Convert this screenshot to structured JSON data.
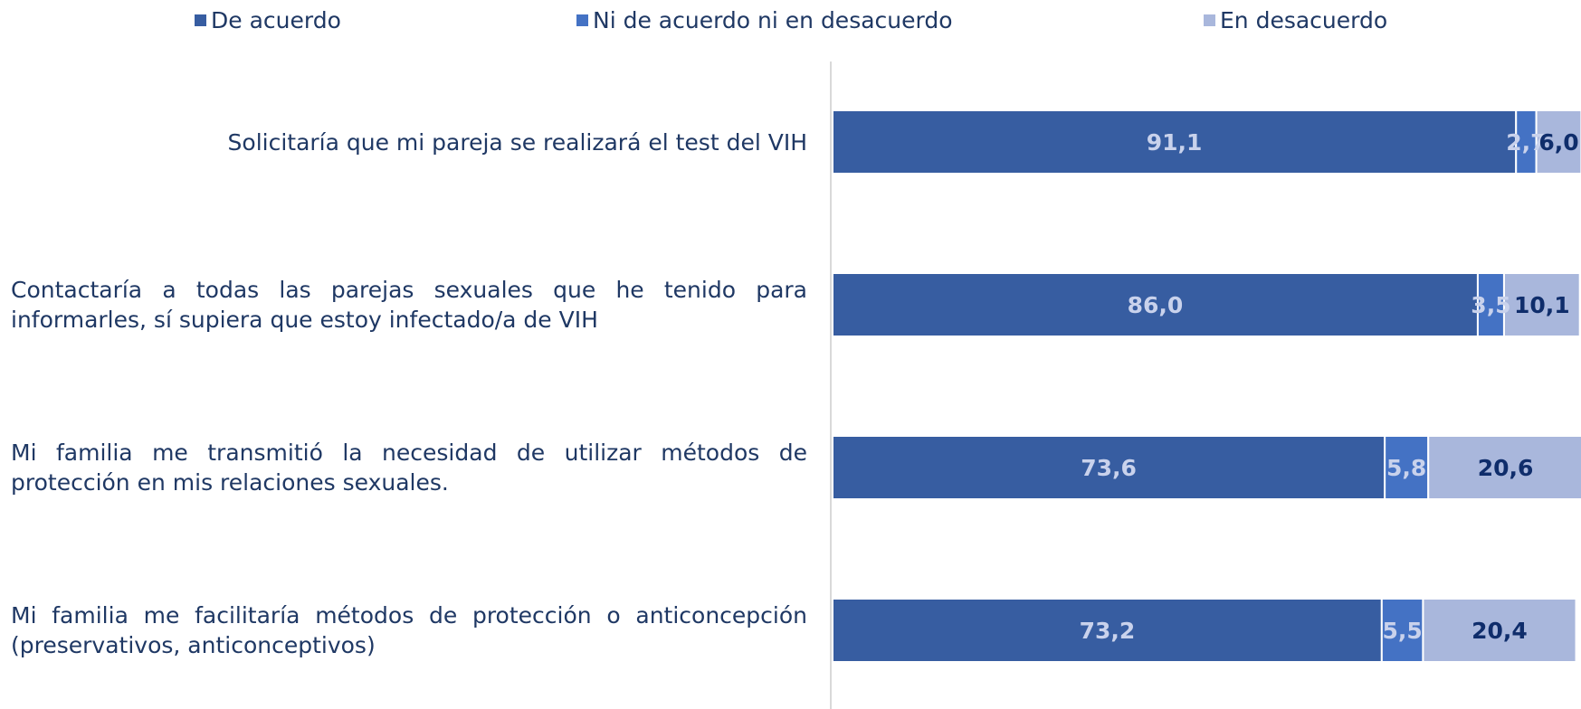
{
  "chart_data": {
    "type": "stacked-bar-horizontal",
    "categories": [
      "Solicitaría que mi pareja se realizará el test del VIH",
      "Contactaría a todas las parejas sexuales que he tenido para informarles, sí supiera que estoy infectado/a de VIH",
      "Mi familia me transmitió la necesidad de utilizar métodos de protección en mis relaciones sexuales.",
      "Mi familia me facilitaría métodos de protección o anticoncepción (preservativos, anticonceptivos)"
    ],
    "series": [
      {
        "name": "De acuerdo",
        "color": "#375da1",
        "values": [
          91.1,
          86.0,
          73.6,
          73.2
        ],
        "value_labels": [
          "91,1",
          "86,0",
          "73,6",
          "73,2"
        ]
      },
      {
        "name": "Ni de acuerdo ni en desacuerdo",
        "color": "#4472c4",
        "values": [
          2.7,
          3.5,
          5.8,
          5.5
        ],
        "value_labels": [
          "2,7",
          "3,5",
          "5,8",
          "5,5"
        ]
      },
      {
        "name": "En desacuerdo",
        "color": "#a9b7dc",
        "values": [
          6.0,
          10.1,
          20.6,
          20.4
        ],
        "value_labels": [
          "6,0",
          "10,1",
          "20,6",
          "20,4"
        ]
      }
    ],
    "xlim": [
      0,
      100
    ],
    "legend": "top"
  }
}
